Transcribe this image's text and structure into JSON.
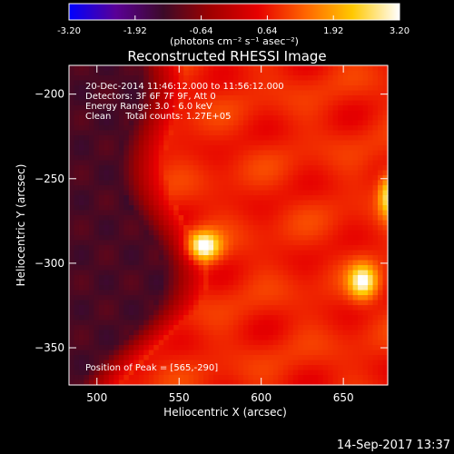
{
  "chart_data": {
    "type": "heatmap",
    "title": "Reconstructed RHESSI Image",
    "xlabel": "Heliocentric X (arcsec)",
    "ylabel": "Heliocentric Y (arcsec)",
    "xlim": [
      483,
      677
    ],
    "ylim": [
      -372,
      -183
    ],
    "x_ticks": [
      500,
      550,
      600,
      650
    ],
    "y_ticks": [
      -200,
      -250,
      -300,
      -350
    ],
    "annotations": [
      "20-Dec-2014 11:46:12.000 to 11:56:12.000",
      "Detectors: 3F 6F 7F 9F, Att 0",
      "Energy Range: 3.0 - 6.0 keV",
      "Clean     Total counts: 1.27E+05"
    ],
    "peak_text": "Position of Peak = [565,-290]",
    "colorbar": {
      "ticks": [
        "-3.20",
        "-1.92",
        "-0.64",
        "0.64",
        "1.92",
        "3.20"
      ],
      "range": [
        -3.2,
        3.2
      ],
      "units": "(photons cm⁻² s⁻¹ asec⁻²)",
      "colors": [
        "#0000ff",
        "#5a0096",
        "#3c0a28",
        "#a00000",
        "#e60000",
        "#ff6400",
        "#ffc800",
        "#ffffff"
      ]
    },
    "sources": [
      {
        "x": 565,
        "y": -290,
        "peak": 2.6,
        "sigma_x": 7,
        "sigma_y": 6
      },
      {
        "x": 662,
        "y": -311,
        "peak": 2.3,
        "sigma_x": 6,
        "sigma_y": 7
      },
      {
        "x": 677,
        "y": -260,
        "peak": 1.8,
        "sigma_x": 4,
        "sigma_y": 9
      }
    ]
  },
  "footer": {
    "timestamp": "14-Sep-2017 13:37"
  }
}
